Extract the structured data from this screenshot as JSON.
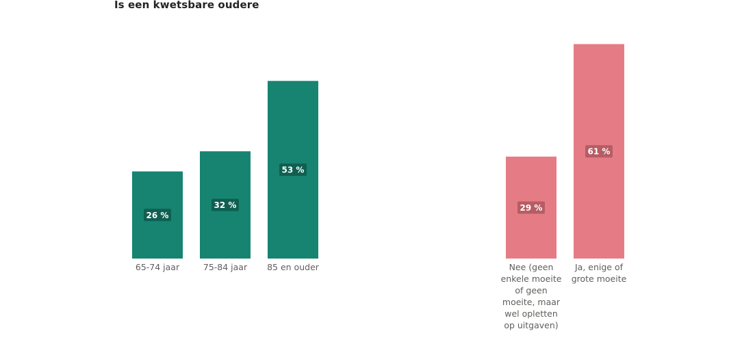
{
  "title": "Is een kwetsbare oudere",
  "chart_data": [
    {
      "type": "bar",
      "categories": [
        "65-74 jaar",
        "75-84 jaar",
        "85 en ouder"
      ],
      "values": [
        26,
        32,
        53
      ],
      "data_labels": [
        "26 %",
        "32 %",
        "53 %"
      ],
      "bar_color": "#168471",
      "label_bg": "#0e5b4e",
      "ylim": [
        0,
        100
      ]
    },
    {
      "type": "bar",
      "categories": [
        [
          "Nee (geen",
          "enkele moeite",
          "of geen",
          "moeite, maar",
          "wel opletten",
          "op uitgaven)"
        ],
        [
          "Ja, enige of",
          "grote moeite"
        ]
      ],
      "values": [
        29,
        61
      ],
      "data_labels": [
        "29 %",
        "61 %"
      ],
      "bar_color": "#e57c85",
      "label_bg": "#b05a61",
      "ylim": [
        0,
        100
      ]
    }
  ]
}
